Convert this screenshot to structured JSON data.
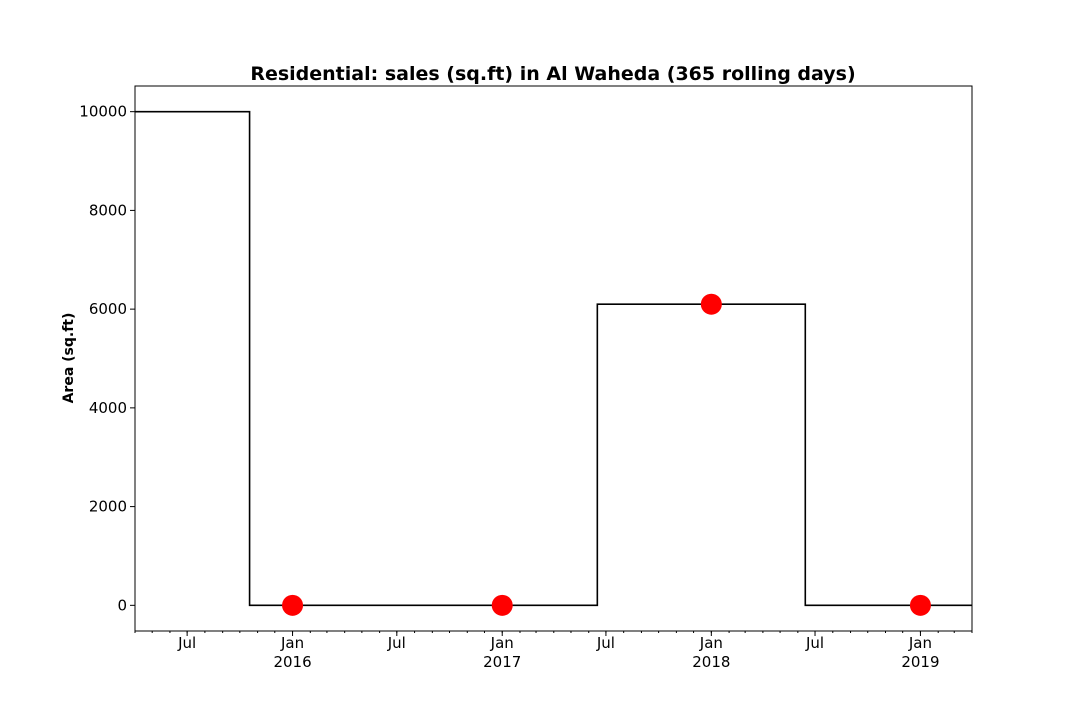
{
  "chart_data": {
    "type": "line",
    "title": "Residential: sales (sq.ft) in Al Waheda (365 rolling days)",
    "xlabel": "",
    "ylabel": "Area (sq.ft)",
    "xlim": [
      "2015-04-01",
      "2019-04-01"
    ],
    "ylim": [
      -520,
      10520
    ],
    "yticks": [
      0,
      2000,
      4000,
      6000,
      8000,
      10000
    ],
    "xticks": [
      {
        "date": "2015-07-01",
        "label": "Jul"
      },
      {
        "date": "2016-01-01",
        "label": "Jan\n2016"
      },
      {
        "date": "2016-07-01",
        "label": "Jul"
      },
      {
        "date": "2017-01-01",
        "label": "Jan\n2017"
      },
      {
        "date": "2017-07-01",
        "label": "Jul"
      },
      {
        "date": "2018-01-01",
        "label": "Jan\n2018"
      },
      {
        "date": "2018-07-01",
        "label": "Jul"
      },
      {
        "date": "2019-01-01",
        "label": "Jan\n2019"
      }
    ],
    "grid": false,
    "series": [
      {
        "style": "step",
        "color": "#000000",
        "x": [
          "2015-04-01",
          "2015-10-18",
          "2015-10-18",
          "2017-06-16",
          "2017-06-16",
          "2018-06-14",
          "2018-06-14",
          "2019-04-01"
        ],
        "values": [
          10000,
          10000,
          0,
          0,
          6100,
          6100,
          0,
          0
        ]
      },
      {
        "style": "markers",
        "color": "#ff0000",
        "x": [
          "2016-01-01",
          "2017-01-01",
          "2018-01-01",
          "2019-01-01"
        ],
        "values": [
          0,
          0,
          6100,
          0
        ]
      }
    ]
  }
}
